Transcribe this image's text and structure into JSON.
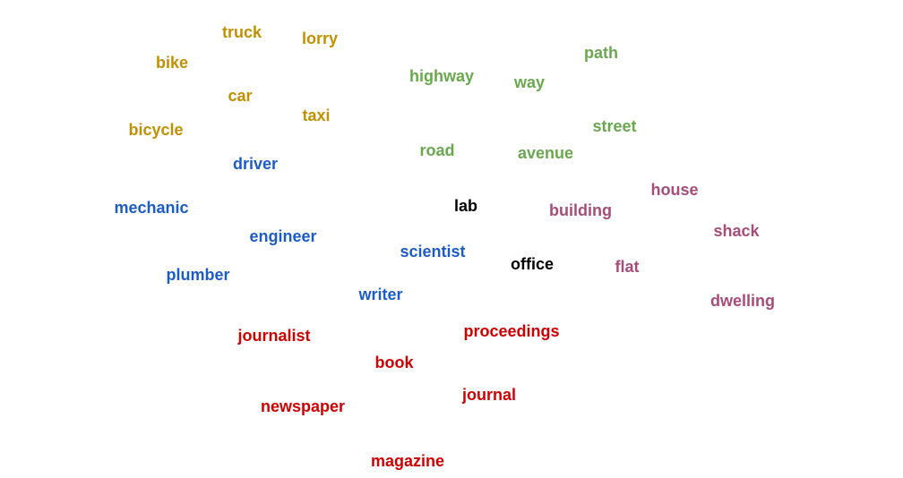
{
  "colors": {
    "vehicles": "#c09000",
    "roads": "#6aa84f",
    "occupations": "#1c5cc6",
    "buildings": "#a64d79",
    "publications": "#cc0000",
    "workplaces": "#000000"
  },
  "words": [
    {
      "id": "truck",
      "text": "truck",
      "group": "vehicles"
    },
    {
      "id": "lorry",
      "text": "lorry",
      "group": "vehicles"
    },
    {
      "id": "bike",
      "text": "bike",
      "group": "vehicles"
    },
    {
      "id": "car",
      "text": "car",
      "group": "vehicles"
    },
    {
      "id": "taxi",
      "text": "taxi",
      "group": "vehicles"
    },
    {
      "id": "bicycle",
      "text": "bicycle",
      "group": "vehicles"
    },
    {
      "id": "path",
      "text": "path",
      "group": "roads"
    },
    {
      "id": "highway",
      "text": "highway",
      "group": "roads"
    },
    {
      "id": "way",
      "text": "way",
      "group": "roads"
    },
    {
      "id": "street",
      "text": "street",
      "group": "roads"
    },
    {
      "id": "road",
      "text": "road",
      "group": "roads"
    },
    {
      "id": "avenue",
      "text": "avenue",
      "group": "roads"
    },
    {
      "id": "driver",
      "text": "driver",
      "group": "occupations"
    },
    {
      "id": "mechanic",
      "text": "mechanic",
      "group": "occupations"
    },
    {
      "id": "engineer",
      "text": "engineer",
      "group": "occupations"
    },
    {
      "id": "scientist",
      "text": "scientist",
      "group": "occupations"
    },
    {
      "id": "plumber",
      "text": "plumber",
      "group": "occupations"
    },
    {
      "id": "writer",
      "text": "writer",
      "group": "occupations"
    },
    {
      "id": "lab",
      "text": "lab",
      "group": "workplaces"
    },
    {
      "id": "office",
      "text": "office",
      "group": "workplaces"
    },
    {
      "id": "house",
      "text": "house",
      "group": "buildings"
    },
    {
      "id": "building",
      "text": "building",
      "group": "buildings"
    },
    {
      "id": "shack",
      "text": "shack",
      "group": "buildings"
    },
    {
      "id": "flat",
      "text": "flat",
      "group": "buildings"
    },
    {
      "id": "dwelling",
      "text": "dwelling",
      "group": "buildings"
    },
    {
      "id": "journalist",
      "text": "journalist",
      "group": "publications"
    },
    {
      "id": "proceedings",
      "text": "proceedings",
      "group": "publications"
    },
    {
      "id": "book",
      "text": "book",
      "group": "publications"
    },
    {
      "id": "journal",
      "text": "journal",
      "group": "publications"
    },
    {
      "id": "newspaper",
      "text": "newspaper",
      "group": "publications"
    },
    {
      "id": "magazine",
      "text": "magazine",
      "group": "publications"
    }
  ]
}
